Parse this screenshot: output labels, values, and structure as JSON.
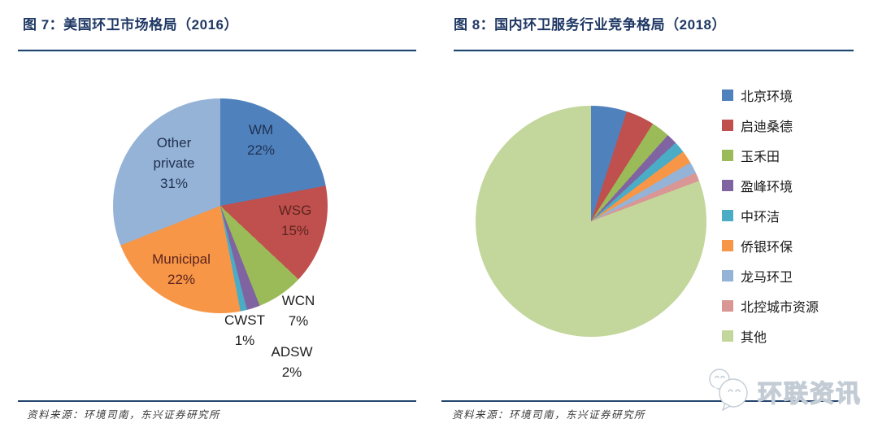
{
  "panels": {
    "left": {
      "title": "图 7：美国环卫市场格局（2016）",
      "source": "资料来源：环境司南，东兴证券研究所"
    },
    "right": {
      "title": "图 8：国内环卫服务行业竞争格局（2018）",
      "source": "资料来源：环境司南，东兴证券研究所"
    }
  },
  "watermark": {
    "text": "环联资讯",
    "icon": "chat-bubbles-icon"
  },
  "chart_data": [
    {
      "type": "pie",
      "title": "图 7：美国环卫市场格局（2016）",
      "categories": [
        "WM",
        "WSG",
        "WCN",
        "ADSW",
        "CWST",
        "Municipal",
        "Other private"
      ],
      "values": [
        22,
        15,
        7,
        2,
        1,
        22,
        31
      ],
      "unit": "percent",
      "colors": [
        "#4F81BD",
        "#C0504D",
        "#9BBB59",
        "#8064A2",
        "#4BACC6",
        "#F79646",
        "#95B3D7"
      ],
      "start_angle_deg": 0,
      "direction": "clockwise",
      "legend_position": "none",
      "data_labels": [
        {
          "line1": "WM",
          "line2": "22%"
        },
        {
          "line1": "WSG",
          "line2": "15%"
        },
        {
          "line1": "WCN",
          "line2": "7%"
        },
        {
          "line1": "ADSW",
          "line2": "2%"
        },
        {
          "line1": "CWST",
          "line2": "1%"
        },
        {
          "line1": "Municipal",
          "line2": "22%"
        },
        {
          "line1": "Other private",
          "line2": "31%"
        }
      ]
    },
    {
      "type": "pie",
      "title": "图 8：国内环卫服务行业竞争格局（2018）",
      "categories": [
        "北京环境",
        "启迪桑德",
        "玉禾田",
        "盈峰环境",
        "中环洁",
        "侨银环保",
        "龙马环卫",
        "北控城市资源",
        "其他"
      ],
      "values": [
        5,
        4,
        2.6,
        1.5,
        1.6,
        1.8,
        1.6,
        1.2,
        80.7
      ],
      "values_note": "percentages estimated from slice angles; chart shows no numeric labels",
      "unit": "percent",
      "colors": [
        "#4F81BD",
        "#C0504D",
        "#9BBB59",
        "#8064A2",
        "#4BACC6",
        "#F79646",
        "#95B3D7",
        "#D99694",
        "#C3D69B"
      ],
      "start_angle_deg": 0,
      "direction": "clockwise",
      "legend_position": "right"
    }
  ]
}
